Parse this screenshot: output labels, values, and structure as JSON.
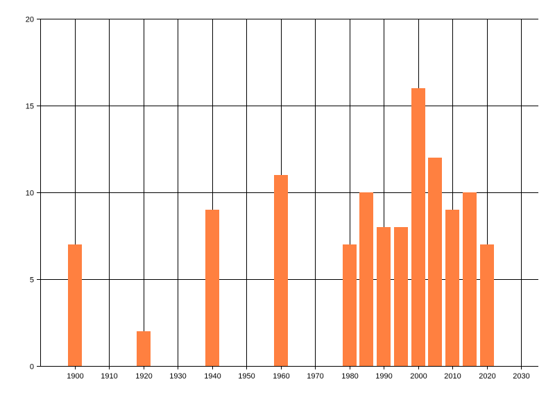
{
  "chart_data": {
    "type": "bar",
    "x": [
      1900,
      1920,
      1940,
      1960,
      1980,
      1985,
      1990,
      1995,
      2000,
      2005,
      2010,
      2015,
      2020
    ],
    "values": [
      7,
      2,
      9,
      11,
      7,
      10,
      8,
      8,
      16,
      12,
      9,
      10,
      7
    ],
    "title": "",
    "xlabel": "",
    "ylabel": "",
    "xlim": [
      1890,
      2035
    ],
    "ylim": [
      0,
      20
    ],
    "x_ticks": [
      1900,
      1910,
      1920,
      1930,
      1940,
      1950,
      1960,
      1970,
      1980,
      1990,
      2000,
      2010,
      2020,
      2030
    ],
    "y_ticks": [
      0,
      5,
      10,
      15,
      20
    ],
    "x_tick_labels": [
      "1900",
      "1910",
      "1920",
      "1930",
      "1940",
      "1950",
      "1960",
      "1970",
      "1980",
      "1990",
      "2000",
      "2010",
      "2020",
      "2030"
    ],
    "y_tick_labels": [
      "0",
      "5",
      "10",
      "15",
      "20"
    ],
    "bar_color": "#FF8040",
    "grid": true,
    "legend": "none"
  }
}
